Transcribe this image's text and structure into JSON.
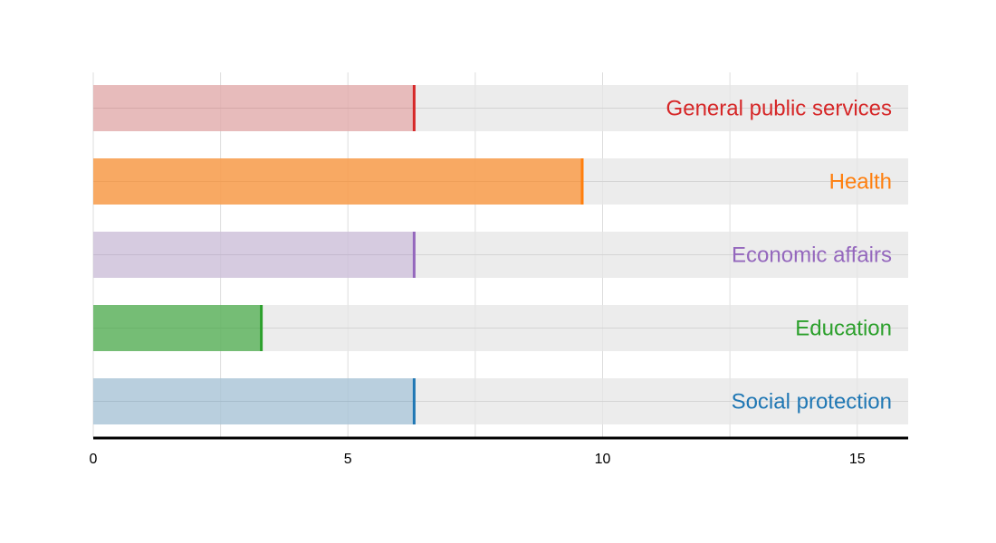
{
  "chart_data": {
    "type": "bar",
    "orientation": "horizontal",
    "categories": [
      "General public services",
      "Health",
      "Economic affairs",
      "Education",
      "Social protection"
    ],
    "values": [
      6.3,
      9.6,
      6.3,
      3.3,
      6.3
    ],
    "colors": [
      "#d62728",
      "#ff7f0e",
      "#9467bd",
      "#2ca02c",
      "#1f77b4"
    ],
    "xlim": [
      0,
      16
    ],
    "xticks": [
      0,
      5,
      10,
      15
    ],
    "grid": true,
    "background_track": true,
    "category_label_placement": "inside-right"
  }
}
